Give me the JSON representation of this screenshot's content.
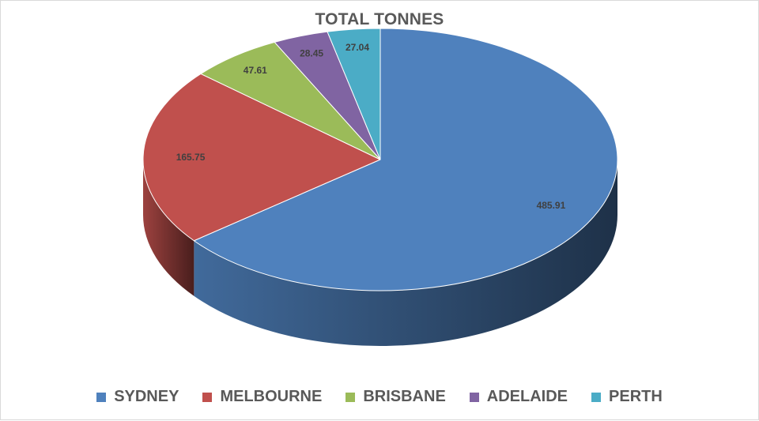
{
  "chart_data": {
    "type": "pie",
    "title": "TOTAL TONNES",
    "categories": [
      "SYDNEY",
      "MELBOURNE",
      "BRISBANE",
      "ADELAIDE",
      "PERTH"
    ],
    "values": [
      485.91,
      165.75,
      47.61,
      28.45,
      27.04
    ],
    "value_labels": [
      "485.91",
      "165.75",
      "47.61",
      "28.45",
      "27.04"
    ],
    "colors": [
      "#4F81BD",
      "#C0504D",
      "#9BBB59",
      "#8064A2",
      "#4BACC6"
    ],
    "style": "3d",
    "legend_position": "bottom"
  }
}
